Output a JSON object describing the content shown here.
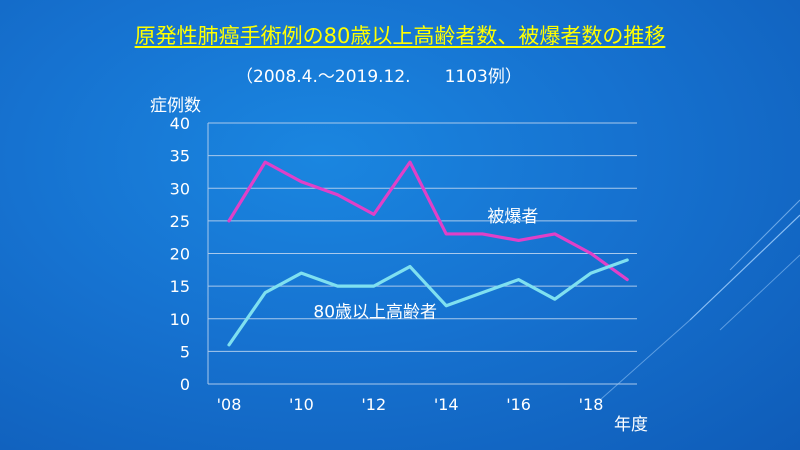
{
  "slide": {
    "title": "原発性肺癌手術例の80歳以上高齢者数、被爆者数の推移",
    "subtitle": "（2008.4.～2019.12.　　1103例）",
    "title_color": "#ffff00"
  },
  "chart_data": {
    "type": "line",
    "ylabel": "症例数",
    "xlabel": "年度",
    "ylim": [
      0,
      40
    ],
    "yticks": [
      "0",
      "5",
      "10",
      "15",
      "20",
      "25",
      "30",
      "35",
      "40"
    ],
    "x": [
      2008,
      2009,
      2010,
      2011,
      2012,
      2013,
      2014,
      2015,
      2016,
      2017,
      2018,
      2019
    ],
    "xtick_labels": [
      "'08",
      "",
      "'10",
      "",
      "'12",
      "",
      "'14",
      "",
      "'16",
      "",
      "'18",
      ""
    ],
    "grid": true,
    "series": [
      {
        "name": "被爆者",
        "color": "#e040c8",
        "values": [
          25,
          34,
          31,
          29,
          26,
          34,
          23,
          23,
          22,
          23,
          20,
          16
        ]
      },
      {
        "name": "80歳以上高齢者",
        "color": "#7fe0f0",
        "values": [
          6,
          14,
          17,
          15,
          15,
          18,
          12,
          14,
          16,
          13,
          17,
          19
        ]
      }
    ]
  }
}
